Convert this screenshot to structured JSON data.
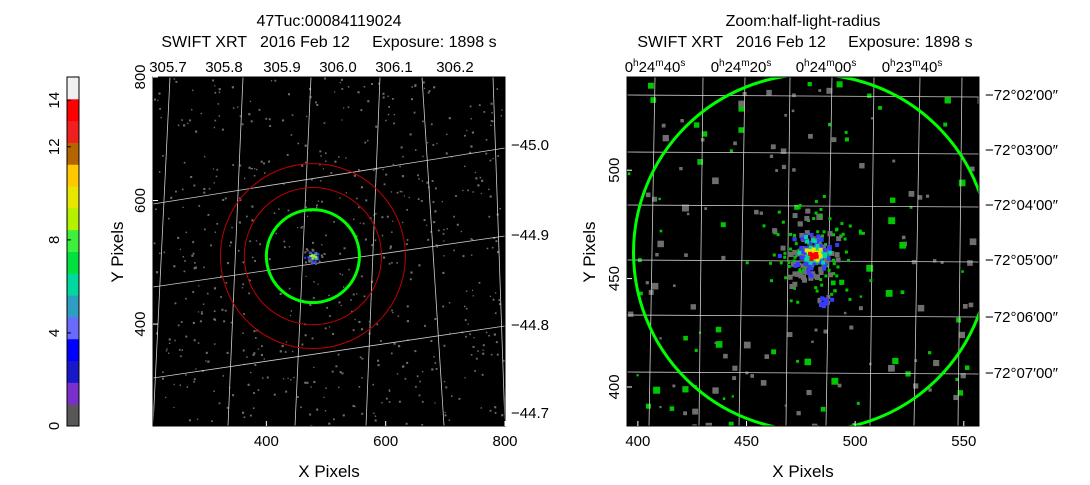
{
  "colorbar": {
    "ticks": [
      "0",
      "4",
      "8",
      "12",
      "14"
    ],
    "tick_values": [
      0,
      4,
      8,
      12,
      14
    ],
    "range": [
      0,
      15
    ],
    "colors": [
      "#585858",
      "#7a2ecb",
      "#1818c8",
      "#0000ff",
      "#6a6aff",
      "#2e9ec2",
      "#00d8a0",
      "#00e040",
      "#3cf03c",
      "#b4f000",
      "#e6e600",
      "#ffc800",
      "#b46400",
      "#f02020",
      "#ff0000",
      "#f0f0f0"
    ]
  },
  "chart_data": [
    {
      "type": "scatter",
      "panel": "left",
      "title": "47Tuc:00084119024",
      "subtitle": "SWIFT XRT   2016 Feb 12     Exposure: 1898 s",
      "xlabel": "X Pixels",
      "ylabel": "Y Pixels",
      "xlim": [
        210,
        800
      ],
      "ylim": [
        235,
        800
      ],
      "x_ticks": [
        "400",
        "600",
        "800"
      ],
      "x_tick_values": [
        400,
        600,
        800
      ],
      "y_ticks": [
        "400",
        "600",
        "800"
      ],
      "y_tick_values": [
        400,
        600,
        800
      ],
      "top_ticks": [
        "305.7",
        "305.8",
        "305.9",
        "306.0",
        "306.1",
        "306.2"
      ],
      "right_ticks": [
        "-45.0",
        "-44.9",
        "-44.8",
        "-44.7"
      ],
      "source_center": [
        478,
        510
      ],
      "circles": [
        {
          "color": "#00ff00",
          "radius": 78
        },
        {
          "color": "#c00000",
          "radius": 115
        },
        {
          "color": "#c00000",
          "radius": 155
        }
      ],
      "grid": true,
      "background": "#000000"
    },
    {
      "type": "scatter",
      "panel": "right",
      "title": "Zoom:half-light-radius",
      "subtitle": "SWIFT XRT   2016 Feb 12     Exposure: 1898 s",
      "xlabel": "X Pixels",
      "ylabel": "Y Pixels",
      "xlim": [
        395,
        557
      ],
      "ylim": [
        382,
        543
      ],
      "x_ticks": [
        "400",
        "450",
        "500",
        "550"
      ],
      "x_tick_values": [
        400,
        450,
        500,
        550
      ],
      "y_ticks": [
        "400",
        "450",
        "500"
      ],
      "y_tick_values": [
        400,
        450,
        500
      ],
      "top_ticks": [
        {
          "h": "0",
          "m": "24",
          "s": "40"
        },
        {
          "h": "0",
          "m": "24",
          "s": "20"
        },
        {
          "h": "0",
          "m": "24",
          "s": "00"
        },
        {
          "h": "0",
          "m": "23",
          "s": "40"
        }
      ],
      "right_ticks": [
        "−72°02′00″",
        "−72°03′00″",
        "−72°04′00″",
        "−72°05′00″",
        "−72°06′00″",
        "−72°07′00″"
      ],
      "source_center": [
        480,
        462
      ],
      "circles": [
        {
          "color": "#00ff00",
          "radius": 82
        }
      ],
      "grid": true,
      "background": "#000000"
    }
  ]
}
